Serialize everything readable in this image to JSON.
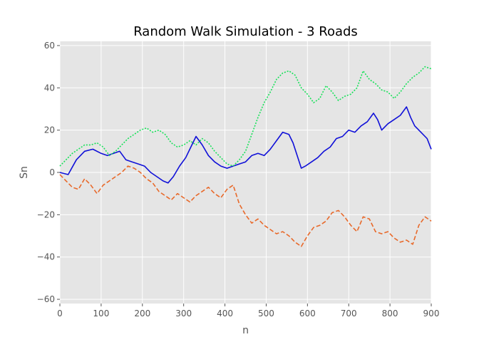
{
  "chart_data": {
    "type": "line",
    "title": "Random Walk Simulation - 3 Roads",
    "xlabel": "n",
    "ylabel": "Sn",
    "xlim": [
      0,
      900
    ],
    "ylim": [
      -62,
      62
    ],
    "xticks": [
      0,
      100,
      200,
      300,
      400,
      500,
      600,
      700,
      800,
      900
    ],
    "yticks": [
      -60,
      -40,
      -20,
      0,
      20,
      40,
      60
    ],
    "grid": true,
    "background": "#e5e5e5",
    "series": [
      {
        "color": "#1010d8",
        "linestyle": "solid",
        "x": [
          0,
          20,
          40,
          60,
          80,
          100,
          115,
          130,
          145,
          160,
          175,
          190,
          205,
          220,
          235,
          250,
          262,
          275,
          290,
          305,
          320,
          330,
          345,
          360,
          375,
          390,
          405,
          420,
          435,
          450,
          465,
          480,
          495,
          510,
          525,
          540,
          555,
          565,
          575,
          585,
          595,
          610,
          625,
          640,
          655,
          670,
          685,
          700,
          715,
          730,
          745,
          760,
          770,
          780,
          795,
          810,
          825,
          840,
          850,
          860,
          875,
          890,
          900
        ],
        "y": [
          0,
          -1,
          6,
          10,
          11,
          9,
          8,
          9,
          10,
          6,
          5,
          4,
          3,
          0,
          -2,
          -4,
          -5,
          -2,
          3,
          7,
          13,
          17,
          13,
          8,
          5,
          3,
          2,
          3,
          4,
          5,
          8,
          9,
          8,
          11,
          15,
          19,
          18,
          14,
          8,
          2,
          3,
          5,
          7,
          10,
          12,
          16,
          17,
          20,
          19,
          22,
          24,
          28,
          25,
          20,
          23,
          25,
          27,
          31,
          26,
          22,
          19,
          16,
          11
        ]
      },
      {
        "color": "#e8692a",
        "linestyle": "dashed",
        "x": [
          0,
          15,
          30,
          45,
          60,
          75,
          90,
          105,
          120,
          135,
          150,
          165,
          180,
          195,
          210,
          225,
          240,
          255,
          270,
          285,
          300,
          315,
          330,
          345,
          360,
          375,
          390,
          405,
          420,
          435,
          450,
          465,
          480,
          495,
          510,
          525,
          540,
          555,
          570,
          585,
          600,
          615,
          630,
          645,
          660,
          675,
          690,
          705,
          720,
          735,
          750,
          765,
          780,
          795,
          810,
          825,
          840,
          855,
          870,
          885,
          900
        ],
        "y": [
          -1,
          -4,
          -7,
          -8,
          -3,
          -6,
          -10,
          -6,
          -4,
          -2,
          0,
          3,
          2,
          0,
          -3,
          -5,
          -9,
          -11,
          -13,
          -10,
          -12,
          -14,
          -11,
          -9,
          -7,
          -10,
          -12,
          -8,
          -6,
          -15,
          -20,
          -24,
          -22,
          -25,
          -27,
          -29,
          -28,
          -30,
          -33,
          -35,
          -30,
          -26,
          -25,
          -23,
          -19,
          -18,
          -21,
          -25,
          -28,
          -21,
          -22,
          -28,
          -29,
          -28,
          -31,
          -33,
          -32,
          -34,
          -25,
          -21,
          -23
        ]
      },
      {
        "color": "#16e158",
        "linestyle": "dotted",
        "x": [
          0,
          15,
          30,
          45,
          60,
          75,
          90,
          105,
          120,
          135,
          150,
          165,
          180,
          195,
          210,
          225,
          240,
          255,
          270,
          285,
          300,
          315,
          330,
          345,
          360,
          375,
          390,
          405,
          420,
          435,
          450,
          465,
          480,
          495,
          510,
          525,
          540,
          555,
          570,
          585,
          600,
          615,
          630,
          645,
          660,
          675,
          690,
          705,
          720,
          735,
          750,
          765,
          780,
          795,
          810,
          825,
          840,
          855,
          870,
          885,
          900
        ],
        "y": [
          3,
          6,
          9,
          11,
          13,
          13,
          14,
          12,
          8,
          10,
          13,
          16,
          18,
          20,
          21,
          19,
          20,
          18,
          14,
          12,
          13,
          15,
          13,
          16,
          14,
          10,
          7,
          4,
          3,
          6,
          10,
          18,
          26,
          33,
          38,
          44,
          47,
          48,
          46,
          40,
          37,
          33,
          35,
          41,
          38,
          34,
          36,
          37,
          40,
          48,
          44,
          42,
          39,
          38,
          35,
          38,
          42,
          45,
          47,
          50,
          49
        ]
      }
    ]
  }
}
